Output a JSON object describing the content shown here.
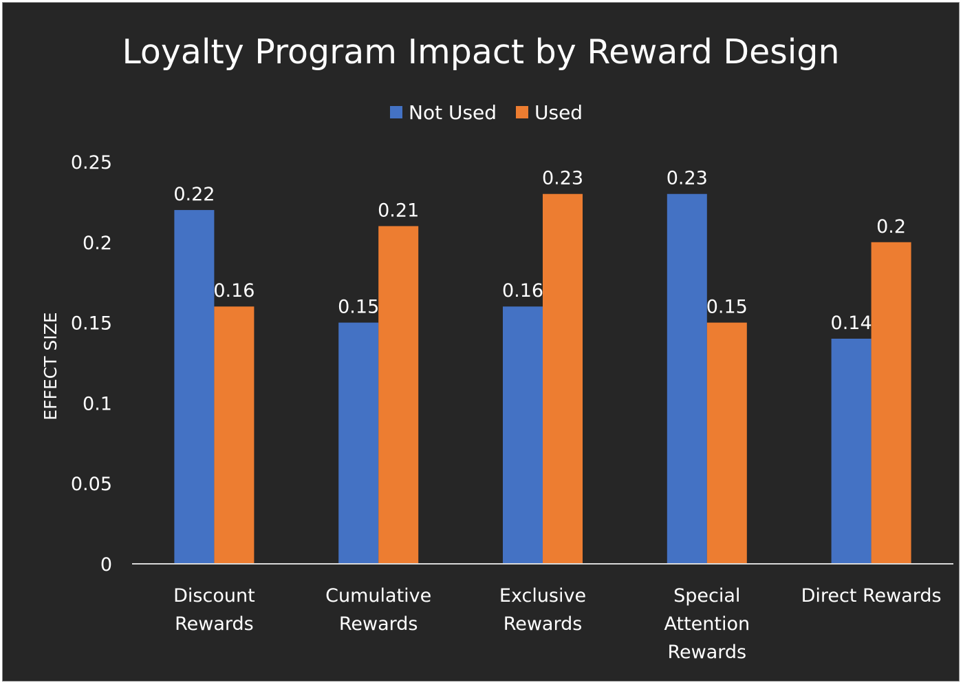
{
  "chart_data": {
    "type": "bar",
    "title": "Loyalty Program Impact by Reward Design",
    "xlabel": "",
    "ylabel": "EFFECT SIZE",
    "ylim": [
      0,
      0.25
    ],
    "yticks": [
      0,
      0.05,
      0.1,
      0.15,
      0.2,
      0.25
    ],
    "ytick_labels": [
      "0",
      "0.05",
      "0.1",
      "0.15",
      "0.2",
      "0.25"
    ],
    "grid": false,
    "legend_position": "top-center",
    "categories": [
      [
        "Discount",
        "Rewards"
      ],
      [
        "Cumulative",
        "Rewards"
      ],
      [
        "Exclusive",
        "Rewards"
      ],
      [
        "Special",
        "Attention",
        "Rewards"
      ],
      [
        "Direct Rewards"
      ]
    ],
    "series": [
      {
        "name": "Not Used",
        "color": "#4472C4",
        "values": [
          0.22,
          0.15,
          0.16,
          0.23,
          0.14
        ],
        "labels": [
          "0.22",
          "0.15",
          "0.16",
          "0.23",
          "0.14"
        ]
      },
      {
        "name": "Used",
        "color": "#ED7D31",
        "values": [
          0.16,
          0.21,
          0.23,
          0.15,
          0.2
        ],
        "labels": [
          "0.16",
          "0.21",
          "0.23",
          "0.15",
          "0.2"
        ]
      }
    ]
  }
}
